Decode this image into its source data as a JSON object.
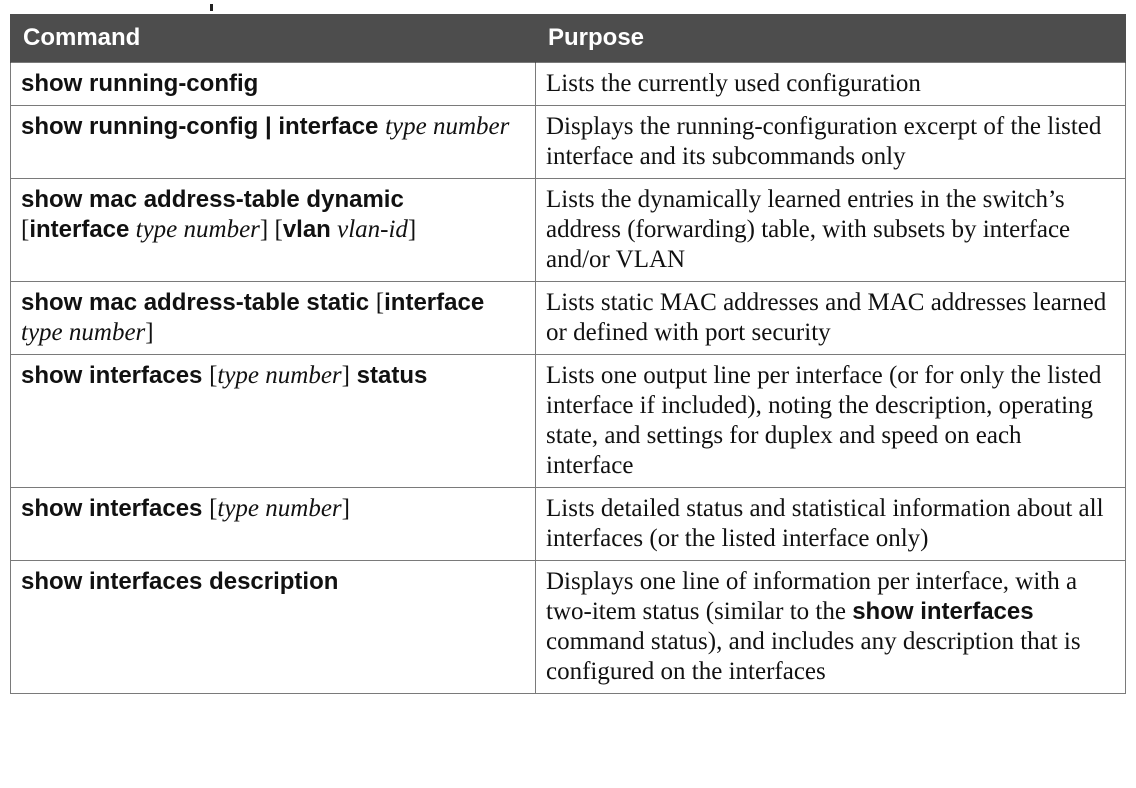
{
  "header": {
    "command": "Command",
    "purpose": "Purpose"
  },
  "rows": [
    {
      "cmd": {
        "p1": "show running-config"
      },
      "purpose": {
        "p1": "Lists the currently used configuration"
      }
    },
    {
      "cmd": {
        "p1": "show running-config | interface ",
        "p2": "type number"
      },
      "purpose": {
        "p1": "Displays the running-configuration excerpt of the listed interface and its subcommands only"
      }
    },
    {
      "cmd": {
        "p1": "show mac address-table dynamic",
        "p2": "[",
        "p3": "interface",
        "p4": " type number",
        "p5": "] [",
        "p6": "vlan",
        "p7": " vlan-id",
        "p8": "]"
      },
      "purpose": {
        "p1": "Lists the dynamically learned entries in the switch’s address (forwarding) table, with subsets by interface and/or VLAN"
      }
    },
    {
      "cmd": {
        "p1": "show mac address-table static ",
        "p2": "[",
        "p3": "interface",
        "p4": "type number",
        "p5": "]"
      },
      "purpose": {
        "p1": "Lists static MAC addresses and MAC addresses learned or defined with port security"
      }
    },
    {
      "cmd": {
        "p1": "show interfaces ",
        "p2": "[",
        "p3": "type number",
        "p4": "]",
        "p5": " status"
      },
      "purpose": {
        "p1": "Lists one output line per interface (or for only the listed interface if included), noting the description, operating state, and settings for duplex and speed on each interface"
      }
    },
    {
      "cmd": {
        "p1": "show interfaces ",
        "p2": "[",
        "p3": "type number",
        "p4": "]"
      },
      "purpose": {
        "p1": "Lists detailed status and statistical information about all interfaces (or the listed interface only)"
      }
    },
    {
      "cmd": {
        "p1": "show interfaces description"
      },
      "purpose": {
        "p1": "Displays one line of information per interface, with a two-item status (similar to the ",
        "p2": "show interfaces",
        "p3": " command status), and includes any description that is configured on the interfaces"
      }
    }
  ]
}
